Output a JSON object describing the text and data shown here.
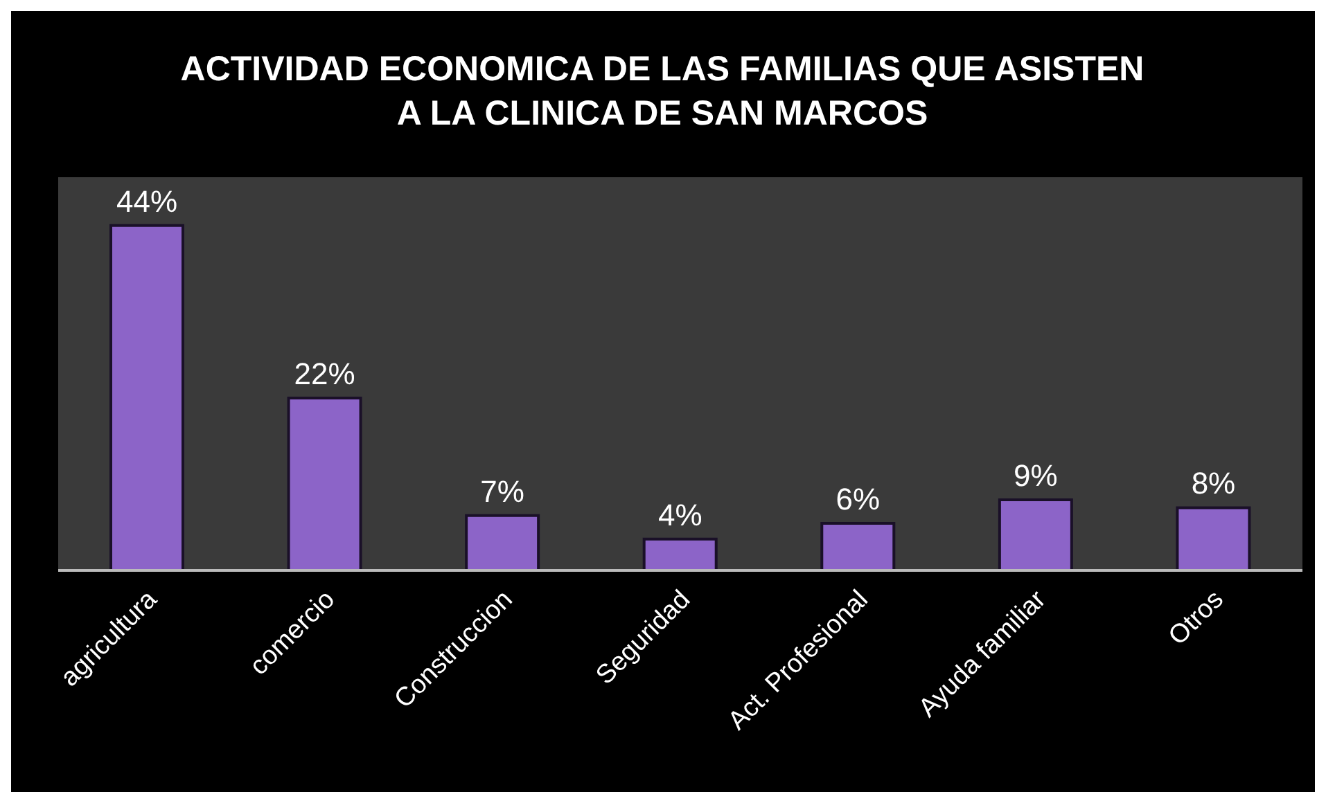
{
  "chart_data": {
    "type": "bar",
    "title": "ACTIVIDAD ECONOMICA DE LAS FAMILIAS QUE ASISTEN A LA CLINICA DE SAN MARCOS",
    "categories": [
      "agricultura",
      "comercio",
      "Construccion",
      "Seguridad",
      "Act. Profesional",
      "Ayuda familiar",
      "Otros"
    ],
    "values": [
      44,
      22,
      7,
      4,
      6,
      9,
      8
    ],
    "value_labels": [
      "44%",
      "22%",
      "7%",
      "4%",
      "6%",
      "9%",
      "8%"
    ],
    "color": "#8c64c8"
  }
}
